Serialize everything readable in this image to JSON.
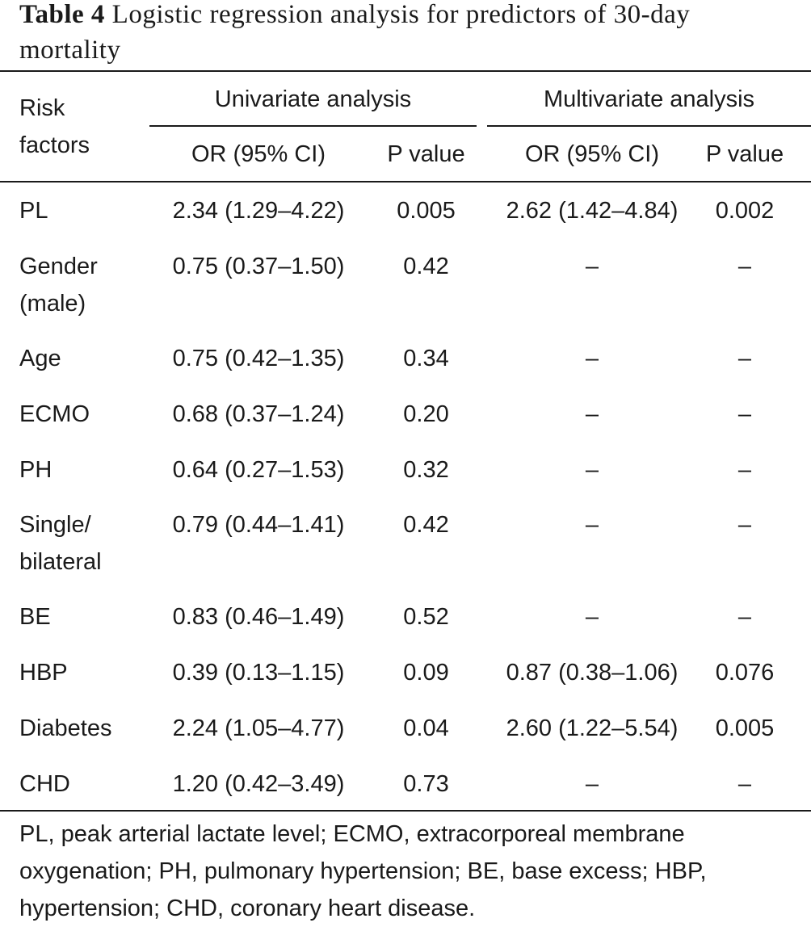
{
  "caption": {
    "label": "Table 4",
    "text": "Logistic regression analysis for predictors of 30-day mortality"
  },
  "header": {
    "risk_factors_line1": "Risk",
    "risk_factors_line2": "factors",
    "group_univariate": "Univariate analysis",
    "group_multivariate": "Multivariate analysis",
    "col_or_uni": "OR (95% CI)",
    "col_p_uni": "P value",
    "col_or_multi": "OR (95% CI)",
    "col_p_multi": "P value"
  },
  "rows": [
    {
      "factor": [
        "PL"
      ],
      "or_uni": "2.34 (1.29–4.22)",
      "p_uni": "0.005",
      "or_multi": "2.62 (1.42–4.84)",
      "p_multi": "0.002"
    },
    {
      "factor": [
        "Gender",
        "(male)"
      ],
      "or_uni": "0.75 (0.37–1.50)",
      "p_uni": "0.42",
      "or_multi": "–",
      "p_multi": "–"
    },
    {
      "factor": [
        "Age"
      ],
      "or_uni": "0.75 (0.42–1.35)",
      "p_uni": "0.34",
      "or_multi": "–",
      "p_multi": "–"
    },
    {
      "factor": [
        "ECMO"
      ],
      "or_uni": "0.68 (0.37–1.24)",
      "p_uni": "0.20",
      "or_multi": "–",
      "p_multi": "–"
    },
    {
      "factor": [
        "PH"
      ],
      "or_uni": "0.64 (0.27–1.53)",
      "p_uni": "0.32",
      "or_multi": "–",
      "p_multi": "–"
    },
    {
      "factor": [
        "Single/",
        "bilateral"
      ],
      "or_uni": "0.79 (0.44–1.41)",
      "p_uni": "0.42",
      "or_multi": "–",
      "p_multi": "–"
    },
    {
      "factor": [
        "BE"
      ],
      "or_uni": "0.83 (0.46–1.49)",
      "p_uni": "0.52",
      "or_multi": "–",
      "p_multi": "–"
    },
    {
      "factor": [
        "HBP"
      ],
      "or_uni": "0.39 (0.13–1.15)",
      "p_uni": "0.09",
      "or_multi": "0.87 (0.38–1.06)",
      "p_multi": "0.076"
    },
    {
      "factor": [
        "Diabetes"
      ],
      "or_uni": "2.24 (1.05–4.77)",
      "p_uni": "0.04",
      "or_multi": "2.60 (1.22–5.54)",
      "p_multi": "0.005"
    },
    {
      "factor": [
        "CHD"
      ],
      "or_uni": "1.20 (0.42–3.49)",
      "p_uni": "0.73",
      "or_multi": "–",
      "p_multi": "–"
    }
  ],
  "footnote": "PL, peak arterial lactate level; ECMO, extracorporeal membrane oxygenation; PH, pulmonary hypertension; BE, base excess; HBP, hypertension; CHD, coronary heart disease."
}
